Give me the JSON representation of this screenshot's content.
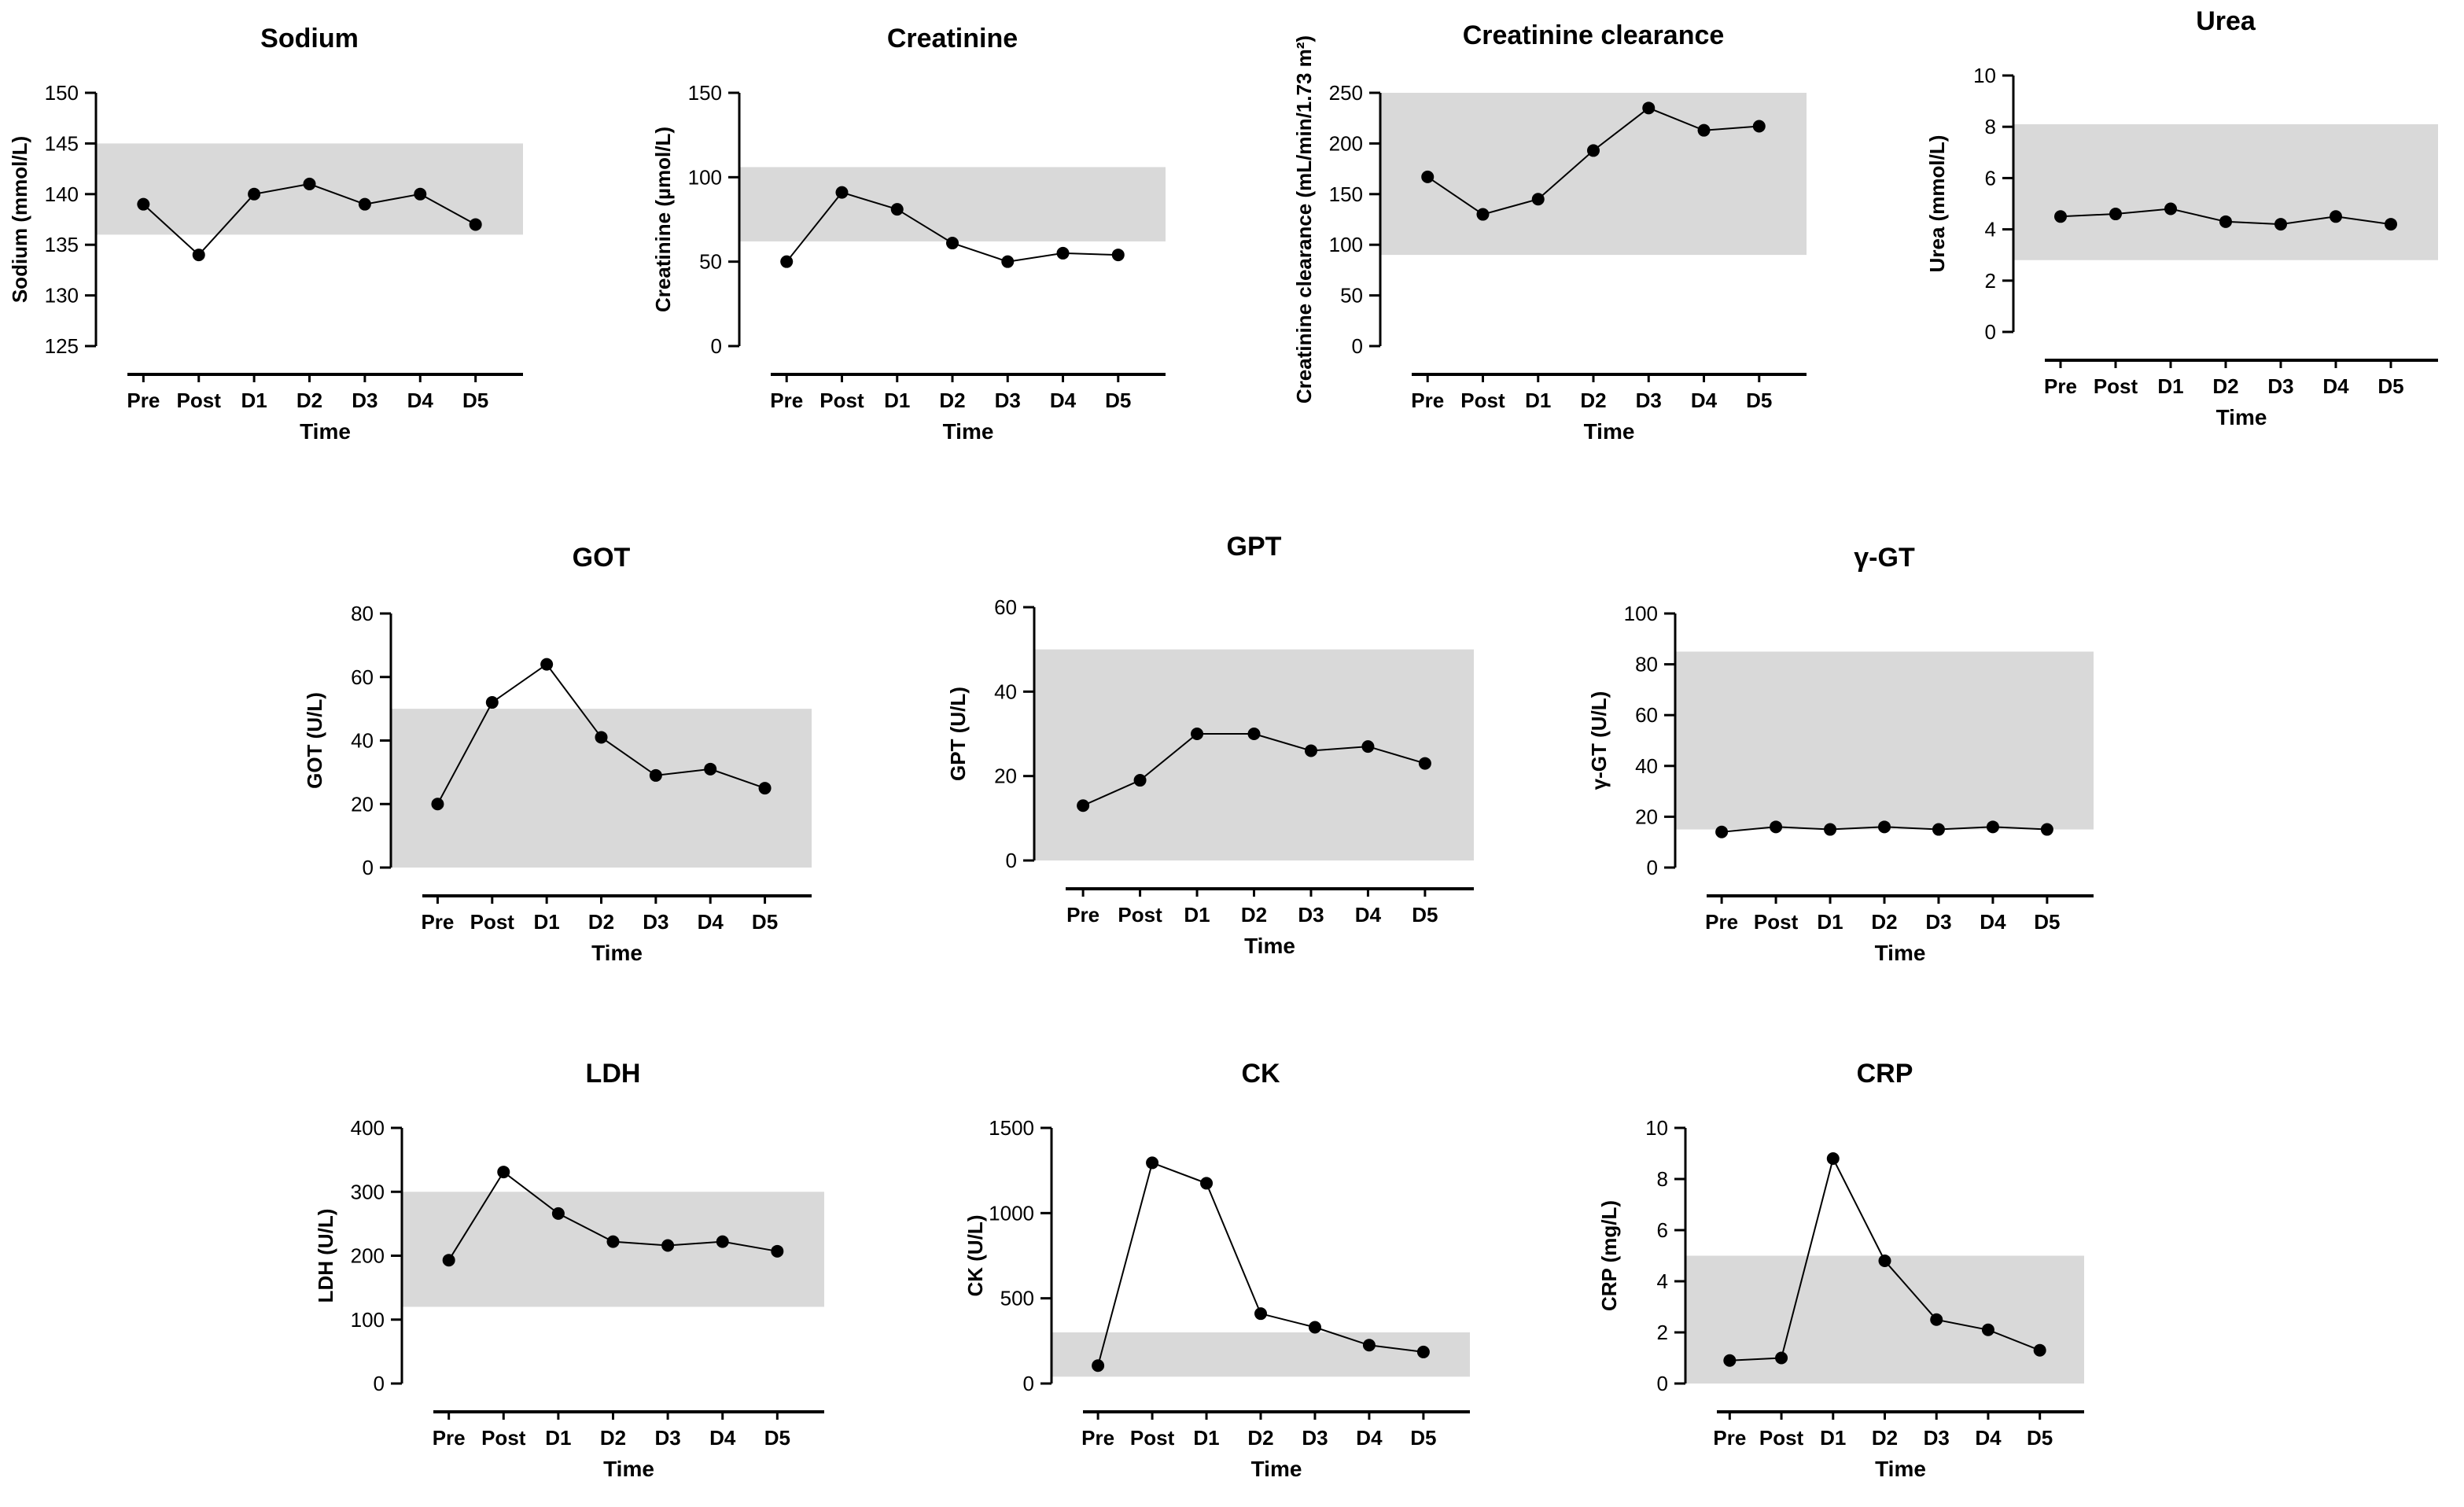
{
  "chart_data": [
    {
      "id": "sodium",
      "type": "line",
      "title": "Sodium",
      "ylabel": "Sodium (mmol/L)",
      "xlabel": "Time",
      "categories": [
        "Pre",
        "Post",
        "D1",
        "D2",
        "D3",
        "D4",
        "D5"
      ],
      "values": [
        139,
        134,
        140,
        141,
        139,
        140,
        137
      ],
      "ylim": [
        125,
        150
      ],
      "yticks": [
        125,
        130,
        135,
        140,
        145,
        150
      ],
      "ref_range": [
        136,
        145
      ]
    },
    {
      "id": "creatinine",
      "type": "line",
      "title": "Creatinine",
      "ylabel": "Creatinine (µmol/L)",
      "xlabel": "Time",
      "categories": [
        "Pre",
        "Post",
        "D1",
        "D2",
        "D3",
        "D4",
        "D5"
      ],
      "values": [
        50,
        91,
        81,
        61,
        50,
        55,
        54
      ],
      "ylim": [
        0,
        150
      ],
      "yticks": [
        0,
        50,
        100,
        150
      ],
      "ref_range": [
        62,
        106
      ]
    },
    {
      "id": "creatinine-clearance",
      "type": "line",
      "title": "Creatinine clearance",
      "ylabel": "Creatinine clearance (mL/min/1.73 m²)",
      "xlabel": "Time",
      "categories": [
        "Pre",
        "Post",
        "D1",
        "D2",
        "D3",
        "D4",
        "D5"
      ],
      "values": [
        167,
        130,
        145,
        193,
        235,
        213,
        217
      ],
      "ylim": [
        0,
        250
      ],
      "yticks": [
        0,
        50,
        100,
        150,
        200,
        250
      ],
      "ref_range": [
        90,
        250
      ]
    },
    {
      "id": "urea",
      "type": "line",
      "title": "Urea",
      "ylabel": "Urea (mmol/L)",
      "xlabel": "Time",
      "categories": [
        "Pre",
        "Post",
        "D1",
        "D2",
        "D3",
        "D4",
        "D5"
      ],
      "values": [
        4.5,
        4.6,
        4.8,
        4.3,
        4.2,
        4.5,
        4.2
      ],
      "ylim": [
        0,
        10
      ],
      "yticks": [
        0,
        2,
        4,
        6,
        8,
        10
      ],
      "ref_range": [
        2.8,
        8.1
      ]
    },
    {
      "id": "got",
      "type": "line",
      "title": "GOT",
      "ylabel": "GOT (U/L)",
      "xlabel": "Time",
      "categories": [
        "Pre",
        "Post",
        "D1",
        "D2",
        "D3",
        "D4",
        "D5"
      ],
      "values": [
        20,
        52,
        64,
        41,
        29,
        31,
        25
      ],
      "ylim": [
        0,
        80
      ],
      "yticks": [
        0,
        20,
        40,
        60,
        80
      ],
      "ref_range": [
        0,
        50
      ]
    },
    {
      "id": "gpt",
      "type": "line",
      "title": "GPT",
      "ylabel": "GPT (U/L)",
      "xlabel": "Time",
      "categories": [
        "Pre",
        "Post",
        "D1",
        "D2",
        "D3",
        "D4",
        "D5"
      ],
      "values": [
        13,
        19,
        30,
        30,
        26,
        27,
        23
      ],
      "ylim": [
        0,
        60
      ],
      "yticks": [
        0,
        20,
        40,
        60
      ],
      "ref_range": [
        0,
        50
      ]
    },
    {
      "id": "ggt",
      "type": "line",
      "title": "γ-GT",
      "ylabel": "γ-GT (U/L)",
      "xlabel": "Time",
      "categories": [
        "Pre",
        "Post",
        "D1",
        "D2",
        "D3",
        "D4",
        "D5"
      ],
      "values": [
        14,
        16,
        15,
        16,
        15,
        16,
        15
      ],
      "ylim": [
        0,
        100
      ],
      "yticks": [
        0,
        20,
        40,
        60,
        80,
        100
      ],
      "ref_range": [
        15,
        85
      ]
    },
    {
      "id": "ldh",
      "type": "line",
      "title": "LDH",
      "ylabel": "LDH (U/L)",
      "xlabel": "Time",
      "categories": [
        "Pre",
        "Post",
        "D1",
        "D2",
        "D3",
        "D4",
        "D5"
      ],
      "values": [
        193,
        331,
        266,
        222,
        216,
        222,
        207
      ],
      "ylim": [
        0,
        400
      ],
      "yticks": [
        0,
        100,
        200,
        300,
        400
      ],
      "ref_range": [
        120,
        300
      ]
    },
    {
      "id": "ck",
      "type": "line",
      "title": "CK",
      "ylabel": "CK (U/L)",
      "xlabel": "Time",
      "categories": [
        "Pre",
        "Post",
        "D1",
        "D2",
        "D3",
        "D4",
        "D5"
      ],
      "values": [
        105,
        1295,
        1175,
        410,
        330,
        225,
        185
      ],
      "ylim": [
        0,
        1500
      ],
      "yticks": [
        0,
        500,
        1000,
        1500
      ],
      "ref_range": [
        40,
        300
      ]
    },
    {
      "id": "crp",
      "type": "line",
      "title": "CRP",
      "ylabel": "CRP (mg/L)",
      "xlabel": "Time",
      "categories": [
        "Pre",
        "Post",
        "D1",
        "D2",
        "D3",
        "D4",
        "D5"
      ],
      "values": [
        0.9,
        1.0,
        8.8,
        4.8,
        2.5,
        2.1,
        1.3
      ],
      "ylim": [
        0,
        10
      ],
      "yticks": [
        0,
        2,
        4,
        6,
        8,
        10
      ],
      "ref_range": [
        0,
        5
      ]
    }
  ]
}
